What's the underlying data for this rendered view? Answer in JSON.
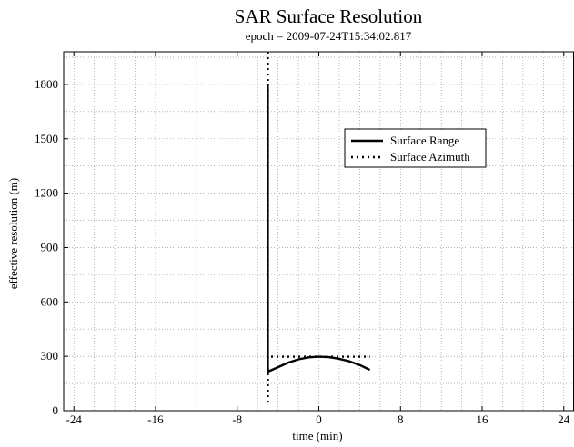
{
  "chart_data": {
    "type": "line",
    "title": "SAR Surface Resolution",
    "subtitle": "epoch = 2009-07-24T15:34:02.817",
    "xlabel": "time (min)",
    "ylabel": "effective resolution (m)",
    "xlim": [
      -25,
      25
    ],
    "ylim": [
      0,
      1980
    ],
    "x_ticks": [
      -24,
      -16,
      -8,
      0,
      8,
      16,
      24
    ],
    "y_ticks": [
      0,
      300,
      600,
      900,
      1200,
      1500,
      1800
    ],
    "grid": true,
    "legend_position": "upper-right",
    "series": [
      {
        "name": "Surface Range",
        "style": "solid",
        "color": "#000000",
        "points": [
          [
            -5.0,
            1800
          ],
          [
            -5.0,
            215
          ],
          [
            -4,
            240
          ],
          [
            -3,
            265
          ],
          [
            -2,
            283
          ],
          [
            -1,
            294
          ],
          [
            0,
            298
          ],
          [
            1,
            295
          ],
          [
            2,
            286
          ],
          [
            3,
            272
          ],
          [
            4,
            252
          ],
          [
            5,
            225
          ]
        ]
      },
      {
        "name": "Surface Azimuth",
        "style": "dotted",
        "color": "#000000",
        "points": [
          [
            -5.0,
            1980
          ],
          [
            -5.0,
            50
          ],
          [
            -5.0,
            298
          ],
          [
            -4,
            298
          ],
          [
            -3,
            298
          ],
          [
            -2,
            298
          ],
          [
            -1,
            298
          ],
          [
            0,
            298
          ],
          [
            1,
            298
          ],
          [
            2,
            298
          ],
          [
            3,
            298
          ],
          [
            4,
            298
          ],
          [
            5,
            298
          ]
        ]
      }
    ]
  }
}
